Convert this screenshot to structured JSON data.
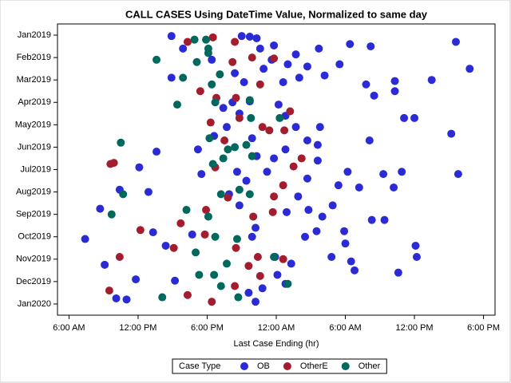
{
  "chart_data": {
    "type": "scatter",
    "title": "CALL CASES Using DateTime Value, Normalized to same day",
    "x_label": "Last Case Ending (hr)",
    "legend_title": "Case Type",
    "legend_position": "bottom",
    "xlim": [
      5,
      43
    ],
    "xticks": [
      {
        "value": 6,
        "label": "6:00 AM"
      },
      {
        "value": 12,
        "label": "12:00 PM"
      },
      {
        "value": 18,
        "label": "6:00 PM"
      },
      {
        "value": 24,
        "label": "12:00 AM"
      },
      {
        "value": 30,
        "label": "6:00 AM"
      },
      {
        "value": 36,
        "label": "12:00 PM"
      },
      {
        "value": 42,
        "label": "6:00 PM"
      }
    ],
    "ylim": [
      12.5,
      -0.5
    ],
    "yticks": [
      {
        "value": 0,
        "label": "Jan2019"
      },
      {
        "value": 1,
        "label": "Feb2019"
      },
      {
        "value": 2,
        "label": "Mar2019"
      },
      {
        "value": 3,
        "label": "Apr2019"
      },
      {
        "value": 4,
        "label": "May2019"
      },
      {
        "value": 5,
        "label": "Jun2019"
      },
      {
        "value": 6,
        "label": "Jul2019"
      },
      {
        "value": 7,
        "label": "Aug2019"
      },
      {
        "value": 8,
        "label": "Sep2019"
      },
      {
        "value": 9,
        "label": "Oct2019"
      },
      {
        "value": 10,
        "label": "Nov2019"
      },
      {
        "value": 11,
        "label": "Dec2019"
      },
      {
        "value": 12,
        "label": "Jan2020"
      }
    ],
    "series": [
      {
        "name": "OB",
        "color": "#2b2bd6",
        "x": [
          14.9,
          21.0,
          21.7,
          39.6,
          27.7,
          22.6,
          30.4,
          32.2,
          40.8,
          37.5,
          34.3,
          14.9,
          29.5,
          28.2,
          31.8,
          32.5,
          34.3,
          35.1,
          36.0,
          39.2,
          39.8,
          32.1,
          27.8,
          27.6,
          13.6,
          12.1,
          12.9,
          10.4,
          8.7,
          7.4,
          9.1,
          10.1,
          11.0,
          11.8,
          15.2,
          14.4,
          16.7,
          13.3,
          30.2,
          29.4,
          31.2,
          33.3,
          34.9,
          34.2,
          32.3,
          33.4,
          29.9,
          30.0,
          28.9,
          28.0,
          36.1,
          36.2,
          34.6,
          30.5,
          30.8,
          28.8,
          27.5,
          26.5,
          25.3,
          23.9,
          24.8,
          22.2,
          21.6,
          22.8,
          24.1,
          21.9,
          22.2,
          24.9,
          25.9,
          26.8,
          26.7,
          27.6,
          23.2,
          21.4,
          20.6,
          20.8,
          19.9,
          17.5,
          17.2,
          18.6,
          19.7,
          20.8,
          19.4,
          20.2,
          21.7,
          21.2,
          22.9,
          23.6,
          24.6,
          25.0,
          25.7,
          26.0,
          26.7,
          24.2,
          24.8,
          25.7,
          26.7,
          24.8,
          23.8,
          21.9,
          22.3,
          15.9,
          18.4,
          20.4,
          22.3,
          23.8
        ],
        "y": [
          0.04,
          0.04,
          0.07,
          0.3,
          0.6,
          0.6,
          0.4,
          0.5,
          1.5,
          2.0,
          2.05,
          1.9,
          1.3,
          1.8,
          2.2,
          2.7,
          2.5,
          3.7,
          3.7,
          4.4,
          6.2,
          4.7,
          4.1,
          4.9,
          5.2,
          5.9,
          7.0,
          6.9,
          7.75,
          9.1,
          10.25,
          11.75,
          11.8,
          10.9,
          10.96,
          9.4,
          8.9,
          8.8,
          6.1,
          6.7,
          6.8,
          6.2,
          6.1,
          6.8,
          8.25,
          8.25,
          8.75,
          9.3,
          7.6,
          8.1,
          9.4,
          9.9,
          10.6,
          10.1,
          10.5,
          9.9,
          8.75,
          9.0,
          10.2,
          9.9,
          11.1,
          11.9,
          11.5,
          11.3,
          10.7,
          9.0,
          8.6,
          7.9,
          7.2,
          7.8,
          6.4,
          5.6,
          6.1,
          6.5,
          6.1,
          7.6,
          7.1,
          6.2,
          5.1,
          4.5,
          4.1,
          3.5,
          3.25,
          3.0,
          2.96,
          2.1,
          1.5,
          1.1,
          2.1,
          1.3,
          0.86,
          1.9,
          1.4,
          3.1,
          3.6,
          4.1,
          4.7,
          5.1,
          5.5,
          4.6,
          5.4,
          0.6,
          1.1,
          1.7,
          0.14,
          0.46
        ]
      },
      {
        "name": "OtherE",
        "color": "#a31d2f",
        "x": [
          18.5,
          16.3,
          20.4,
          21.9,
          23.8,
          20.2,
          17.4,
          18.8,
          20.5,
          22.6,
          25.2,
          18.3,
          20.8,
          23.4,
          24.7,
          22.8,
          19.5,
          9.6,
          9.9,
          18.7,
          25.5,
          26.2,
          24.6,
          23.8,
          19.8,
          17.9,
          22.0,
          23.7,
          15.7,
          12.2,
          17.8,
          15.1,
          20.5,
          10.4,
          22.4,
          21.6,
          20.4,
          16.3,
          18.4,
          9.5,
          22.6,
          24.6
        ],
        "y": [
          0.1,
          0.3,
          0.3,
          1.0,
          1.04,
          1.2,
          2.5,
          2.8,
          2.8,
          2.2,
          3.4,
          3.9,
          3.7,
          4.25,
          4.25,
          4.1,
          4.7,
          5.75,
          5.7,
          5.9,
          5.86,
          5.5,
          6.7,
          7.2,
          7.25,
          7.8,
          8.1,
          7.9,
          8.4,
          8.7,
          8.9,
          9.5,
          9.5,
          9.9,
          9.9,
          10.3,
          11.2,
          11.6,
          11.9,
          11.4,
          10.75,
          10.0
        ]
      },
      {
        "name": "Other",
        "color": "#00695e",
        "x": [
          17.9,
          16.9,
          13.6,
          17.1,
          18.1,
          15.9,
          19.1,
          18.4,
          15.4,
          18.7,
          21.7,
          21.8,
          24.3,
          18.2,
          10.5,
          19.8,
          20.4,
          21.4,
          19.4,
          18.5,
          21.9,
          10.7,
          9.7,
          16.2,
          19.2,
          18.1,
          21.7,
          20.6,
          18.7,
          17.0,
          19.7,
          23.8,
          17.3,
          18.6,
          19.2,
          14.1,
          20.7,
          25.0,
          20.8,
          18.1
        ],
        "y": [
          0.2,
          0.2,
          1.1,
          1.2,
          0.8,
          1.9,
          1.75,
          2.2,
          3.1,
          3.0,
          2.9,
          3.7,
          3.7,
          4.6,
          4.8,
          5.1,
          5.0,
          4.9,
          5.5,
          5.75,
          5.4,
          7.1,
          8.0,
          7.8,
          7.1,
          8.1,
          7.1,
          9.1,
          9.0,
          9.7,
          10.2,
          9.9,
          10.7,
          10.7,
          11.2,
          11.7,
          11.7,
          11.1,
          6.9,
          0.6
        ]
      }
    ]
  }
}
